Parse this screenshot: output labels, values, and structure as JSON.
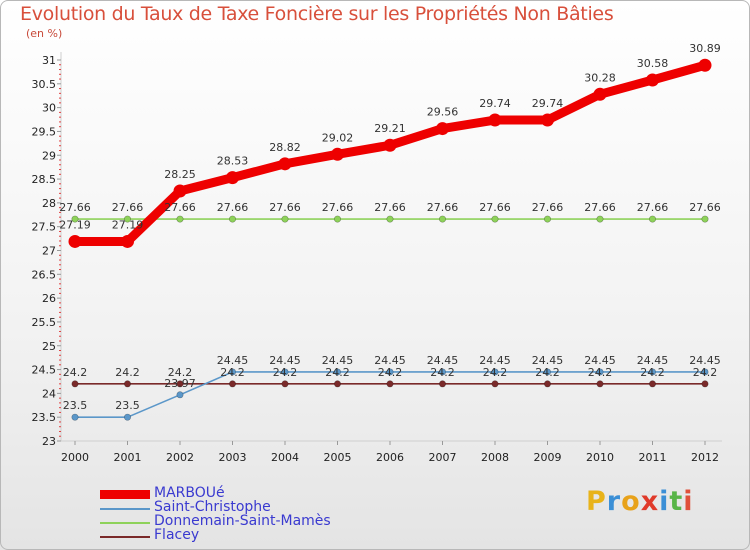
{
  "header": {
    "title": "Evolution du Taux de Taxe Foncière sur les Propriétés Non Bâties",
    "unit": "(en %)"
  },
  "logo": {
    "text": "Proxiti",
    "letters": [
      "P",
      "r",
      "o",
      "x",
      "i",
      "t",
      "i"
    ],
    "colors": [
      "#e8b31a",
      "#3b8fd6",
      "#e8a21a",
      "#e03a2a",
      "#3b8fd6",
      "#58b548",
      "#e0503a"
    ]
  },
  "chart_data": {
    "type": "line",
    "title": "Evolution du Taux de Taxe Foncière sur les Propriétés Non Bâties",
    "ylabel": "(en %)",
    "xlabel": "",
    "categories": [
      "2000",
      "2001",
      "2002",
      "2003",
      "2004",
      "2005",
      "2006",
      "2007",
      "2008",
      "2009",
      "2010",
      "2011",
      "2012"
    ],
    "ylim": [
      23,
      31
    ],
    "yticks": [
      "23",
      "23.5",
      "24",
      "24.5",
      "25",
      "25.5",
      "26",
      "26.5",
      "27",
      "27.5",
      "28",
      "28.5",
      "29",
      "29.5",
      "30",
      "30.5",
      "31"
    ],
    "series": [
      {
        "name": "MARBOUé",
        "color": "#ee0000",
        "values": [
          27.19,
          27.19,
          28.25,
          28.53,
          28.82,
          29.02,
          29.21,
          29.56,
          29.74,
          29.74,
          30.28,
          30.58,
          30.89
        ],
        "labels": [
          "27.19",
          "27.19",
          "28.25",
          "28.53",
          "28.82",
          "29.02",
          "29.21",
          "29.56",
          "29.74",
          "29.74",
          "30.28",
          "30.58",
          "30.89"
        ]
      },
      {
        "name": "Saint-Christophe",
        "color": "#5b97c9",
        "values": [
          23.5,
          23.5,
          23.97,
          24.45,
          24.45,
          24.45,
          24.45,
          24.45,
          24.45,
          24.45,
          24.45,
          24.45,
          24.45
        ],
        "labels": [
          "23.5",
          "23.5",
          "23.97",
          "24.45",
          "24.45",
          "24.45",
          "24.45",
          "24.45",
          "24.45",
          "24.45",
          "24.45",
          "24.45",
          "24.45"
        ]
      },
      {
        "name": "Donnemain-Saint-Mamès",
        "color": "#8ed25a",
        "values": [
          27.66,
          27.66,
          27.66,
          27.66,
          27.66,
          27.66,
          27.66,
          27.66,
          27.66,
          27.66,
          27.66,
          27.66,
          27.66
        ],
        "labels": [
          "27.66",
          "27.66",
          "27.66",
          "27.66",
          "27.66",
          "27.66",
          "27.66",
          "27.66",
          "27.66",
          "27.66",
          "27.66",
          "27.66",
          "27.66"
        ]
      },
      {
        "name": "Flacey",
        "color": "#7a2a2a",
        "values": [
          24.2,
          24.2,
          24.2,
          24.2,
          24.2,
          24.2,
          24.2,
          24.2,
          24.2,
          24.2,
          24.2,
          24.2,
          24.2
        ],
        "labels": [
          "24.2",
          "24.2",
          "24.2",
          "24.2",
          "24.2",
          "24.2",
          "24.2",
          "24.2",
          "24.2",
          "24.2",
          "24.2",
          "24.2",
          "24.2"
        ]
      }
    ],
    "legend": "bottom-left",
    "grid": false
  }
}
